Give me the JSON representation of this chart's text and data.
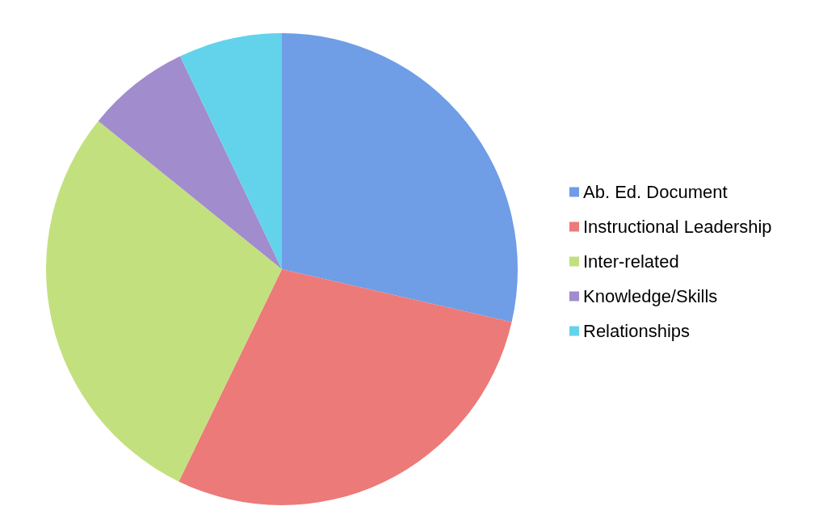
{
  "chart_data": {
    "type": "pie",
    "categories": [
      "Ab. Ed. Document",
      "Instructional Leadership",
      "Inter-related",
      "Knowledge/Skills",
      "Relationships"
    ],
    "values": [
      28.6,
      28.6,
      28.6,
      7.1,
      7.1
    ],
    "colors": [
      "#6f9de6",
      "#ec7a78",
      "#c3e07e",
      "#a18ccd",
      "#62d3ea"
    ],
    "legend": "right"
  }
}
